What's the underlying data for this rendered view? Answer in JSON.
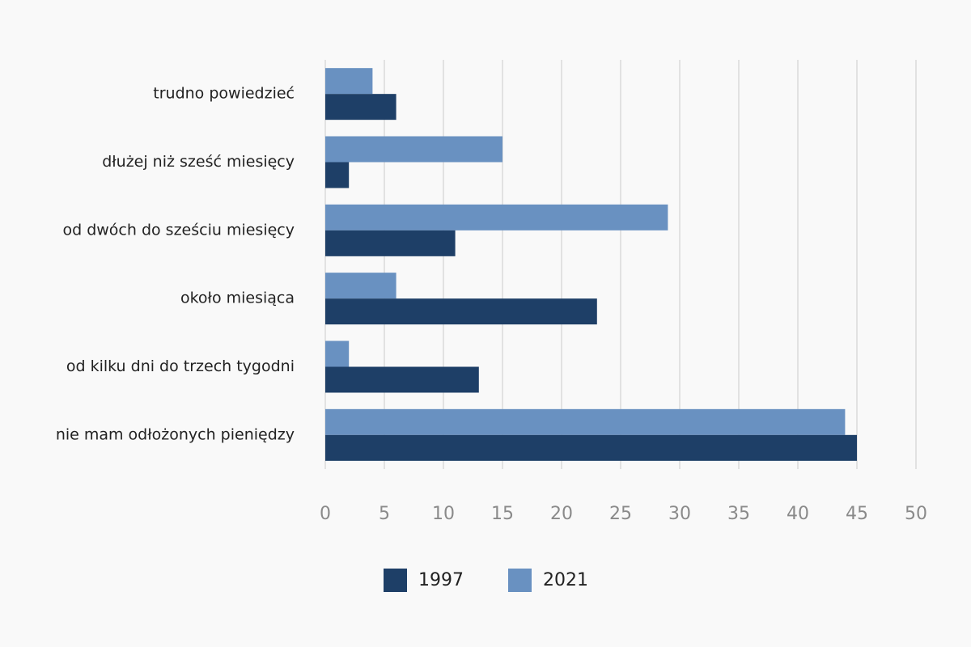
{
  "chart_data": {
    "type": "bar",
    "orientation": "horizontal",
    "categories": [
      "trudno powiedzieć",
      "dłużej niż sześć miesięcy",
      "od dwóch do sześciu miesięcy",
      "około miesiąca",
      "od kilku dni do trzech tygodni",
      "nie mam odłożonych pieniędzy"
    ],
    "series": [
      {
        "name": "2021",
        "color": "#6991c1",
        "values": [
          4,
          15,
          29,
          6,
          2,
          44
        ]
      },
      {
        "name": "1997",
        "color": "#1e3f67",
        "values": [
          6,
          2,
          11,
          23,
          13,
          45
        ]
      }
    ],
    "xlim": [
      0,
      50
    ],
    "xticks": [
      0,
      5,
      10,
      15,
      20,
      25,
      30,
      35,
      40,
      45,
      50
    ],
    "grid": "vertical",
    "legend": {
      "position": "bottom",
      "order": [
        "1997",
        "2021"
      ]
    },
    "title": "",
    "xlabel": "",
    "ylabel": ""
  }
}
